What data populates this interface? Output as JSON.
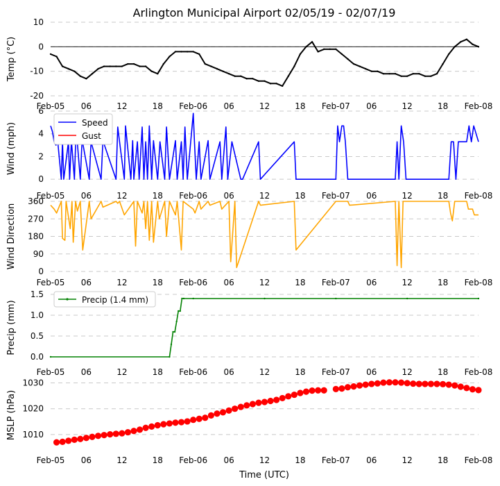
{
  "title": "Arlington Municipal Airport 02/05/19 - 02/07/19",
  "xlabel": "Time (UTC)",
  "x_range_hours": [
    0,
    72
  ],
  "x_ticks": [
    {
      "h": 0,
      "label": "Feb-05",
      "major": true
    },
    {
      "h": 6,
      "label": "06",
      "major": false
    },
    {
      "h": 12,
      "label": "12",
      "major": false
    },
    {
      "h": 18,
      "label": "18",
      "major": false
    },
    {
      "h": 24,
      "label": "Feb-06",
      "major": true
    },
    {
      "h": 30,
      "label": "06",
      "major": false
    },
    {
      "h": 36,
      "label": "12",
      "major": false
    },
    {
      "h": 42,
      "label": "18",
      "major": false
    },
    {
      "h": 48,
      "label": "Feb-07",
      "major": true
    },
    {
      "h": 54,
      "label": "06",
      "major": false
    },
    {
      "h": 60,
      "label": "12",
      "major": false
    },
    {
      "h": 66,
      "label": "18",
      "major": false
    },
    {
      "h": 72,
      "label": "Feb-08",
      "major": true
    }
  ],
  "colors": {
    "temp": "#000000",
    "speed": "#0000ff",
    "gust": "#ff0000",
    "dir": "#ffa500",
    "precip": "#008000",
    "mslp": "#ff0000",
    "grid": "#c8c8c8"
  },
  "chart_data": [
    {
      "id": "temp",
      "type": "line",
      "ylabel": "Temp ($^\\circ$C)",
      "ylabel_display": "Temp (°C)",
      "ylim": [
        -20,
        10
      ],
      "yticks": [
        -20,
        -10,
        0,
        10
      ],
      "zero_line": true,
      "series": [
        {
          "name": "Temp",
          "x_hours": [
            0,
            1,
            2,
            3,
            4,
            5,
            6,
            7,
            8,
            9,
            10,
            11,
            12,
            13,
            14,
            15,
            16,
            17,
            18,
            19,
            20,
            21,
            22,
            23,
            24,
            25,
            26,
            27,
            28,
            29,
            30,
            31,
            32,
            33,
            34,
            35,
            36,
            37,
            38,
            39,
            40,
            41,
            42,
            43,
            44,
            45,
            46,
            47,
            48,
            49,
            50,
            51,
            52,
            53,
            54,
            55,
            56,
            57,
            58,
            59,
            60,
            61,
            62,
            63,
            64,
            65,
            66,
            67,
            68,
            69,
            70,
            71,
            72
          ],
          "values": [
            -3,
            -4,
            -8,
            -9,
            -10,
            -12,
            -13,
            -11,
            -9,
            -8,
            -8,
            -8,
            -8,
            -7,
            -7,
            -8,
            -8,
            -10,
            -11,
            -7,
            -4,
            -2,
            -2,
            -2,
            -2,
            -3,
            -7,
            -8,
            -9,
            -10,
            -11,
            -12,
            -12,
            -13,
            -13,
            -14,
            -14,
            -15,
            -15,
            -16,
            -12,
            -8,
            -3,
            0,
            2,
            -2,
            -1,
            -1,
            -1,
            -3,
            -5,
            -7,
            -8,
            -9,
            -10,
            -10,
            -11,
            -11,
            -11,
            -12,
            -12,
            -11,
            -11,
            -12,
            -12,
            -11,
            -7,
            -3,
            0,
            2,
            3,
            1,
            0
          ]
        }
      ]
    },
    {
      "id": "wind",
      "type": "line",
      "ylabel": "Wind (mph)",
      "ylim": [
        -0.6,
        6
      ],
      "yticks": [
        0,
        2,
        4,
        6
      ],
      "legend": [
        "Speed",
        "Gust"
      ],
      "series": [
        {
          "name": "Speed",
          "x_hours": [
            0,
            0.3,
            0.6,
            0.9,
            1.2,
            1.8,
            2.0,
            2.2,
            3.0,
            3.2,
            3.5,
            4.0,
            4.3,
            5.0,
            5.3,
            6.5,
            6.8,
            8.5,
            8.8,
            11.0,
            11.3,
            11.6,
            12.4,
            12.6,
            13.5,
            13.8,
            14.0,
            14.6,
            14.9,
            15.4,
            15.7,
            16.0,
            16.3,
            16.6,
            17.0,
            17.3,
            18.0,
            18.4,
            19.2,
            19.5,
            20.0,
            21.0,
            21.3,
            22.0,
            22.3,
            22.6,
            23.0,
            24.0,
            24.2,
            24.5,
            25.0,
            25.3,
            26.5,
            26.8,
            28.5,
            28.8,
            29.5,
            29.8,
            30.5,
            32.0,
            32.3,
            35.0,
            35.3,
            41.0,
            41.3,
            48.0,
            48.3,
            48.6,
            49.0,
            49.3,
            49.6,
            50.0,
            58.0,
            58.3,
            58.6,
            59.0,
            59.4,
            59.8,
            67.0,
            67.4,
            67.8,
            68.2,
            68.6,
            70.0,
            70.4,
            70.8,
            71.2,
            72.0
          ],
          "values": [
            4.7,
            4.2,
            3.3,
            3.0,
            3.3,
            0.0,
            3.3,
            0.0,
            3.3,
            0.0,
            3.4,
            0.0,
            4.5,
            0.0,
            3.5,
            0.0,
            3.3,
            0.0,
            3.4,
            0.0,
            4.6,
            3.3,
            0.0,
            4.7,
            0.0,
            3.4,
            0.0,
            3.3,
            0.0,
            4.6,
            0.0,
            3.3,
            0.0,
            4.7,
            0.0,
            3.4,
            0.0,
            3.3,
            0.0,
            4.6,
            0.0,
            3.4,
            0.0,
            3.3,
            0.0,
            4.6,
            0.0,
            5.8,
            3.3,
            0.0,
            3.3,
            0.0,
            3.4,
            0.0,
            3.3,
            0.0,
            4.6,
            0.0,
            3.3,
            0.0,
            0.0,
            3.3,
            0.0,
            3.3,
            0.0,
            0.0,
            4.7,
            3.3,
            4.7,
            4.7,
            3.3,
            0.0,
            0.0,
            3.3,
            0.0,
            4.7,
            3.3,
            0.0,
            0.0,
            3.3,
            3.3,
            0.0,
            3.3,
            3.3,
            4.7,
            3.3,
            4.7,
            3.3
          ]
        },
        {
          "name": "Gust",
          "x_hours": [],
          "values": []
        }
      ]
    },
    {
      "id": "dir",
      "type": "line",
      "ylabel": "Wind Direction",
      "ylim": [
        0,
        360
      ],
      "yticks": [
        0,
        90,
        180,
        270,
        360
      ],
      "series": [
        {
          "name": "Direction",
          "x_hours": [
            0,
            0.3,
            0.6,
            1.0,
            1.4,
            1.8,
            2.0,
            2.4,
            2.6,
            3.0,
            3.3,
            3.6,
            3.8,
            4.2,
            4.5,
            5.0,
            5.4,
            6.5,
            6.8,
            8.5,
            8.8,
            11.0,
            11.3,
            11.6,
            12.4,
            14.0,
            14.3,
            14.6,
            15.4,
            15.7,
            16.0,
            16.3,
            16.6,
            17.0,
            17.3,
            18.0,
            18.3,
            19.2,
            19.5,
            20.0,
            21.0,
            21.3,
            22.0,
            22.3,
            24.0,
            24.3,
            25.0,
            25.3,
            26.5,
            26.8,
            28.5,
            28.8,
            30.0,
            30.3,
            31.0,
            31.3,
            35.0,
            35.3,
            41.0,
            41.3,
            48.0,
            50.0,
            50.3,
            58.0,
            58.3,
            58.6,
            59.0,
            59.3,
            67.0,
            67.3,
            67.6,
            68.0,
            70.0,
            70.3,
            71.0,
            71.3,
            72.0
          ],
          "values": [
            340,
            330,
            320,
            300,
            330,
            360,
            170,
            160,
            360,
            280,
            220,
            360,
            150,
            360,
            310,
            360,
            110,
            360,
            270,
            360,
            330,
            360,
            350,
            360,
            290,
            360,
            130,
            360,
            300,
            360,
            220,
            360,
            160,
            360,
            150,
            360,
            270,
            360,
            180,
            360,
            290,
            360,
            110,
            360,
            320,
            300,
            360,
            320,
            360,
            340,
            360,
            320,
            360,
            50,
            360,
            20,
            360,
            340,
            360,
            110,
            360,
            360,
            340,
            360,
            30,
            360,
            20,
            360,
            360,
            300,
            260,
            360,
            360,
            320,
            320,
            290,
            290
          ]
        }
      ]
    },
    {
      "id": "precip",
      "type": "line",
      "ylabel": "Precip (mm)",
      "ylim": [
        -0.1,
        1.5
      ],
      "yticks": [
        0.0,
        0.5,
        1.0,
        1.5
      ],
      "ytick_labels": [
        "0.0",
        "0.5",
        "1.0",
        "1.5"
      ],
      "legend": [
        "Precip (1.4 mm)"
      ],
      "series": [
        {
          "name": "Precip (1.4 mm)",
          "x_hours": [
            0,
            20.0,
            20.3,
            20.6,
            20.9,
            21.2,
            21.5,
            21.8,
            22.1,
            22.4,
            24,
            36,
            48,
            60,
            72
          ],
          "values": [
            0.0,
            0.0,
            0.3,
            0.6,
            0.6,
            0.85,
            1.1,
            1.1,
            1.4,
            1.4,
            1.4,
            1.4,
            1.4,
            1.4,
            1.4
          ]
        }
      ]
    },
    {
      "id": "mslp",
      "type": "scatter",
      "ylabel": "MSLP (hPa)",
      "ylim": [
        1003,
        1032
      ],
      "yticks": [
        1010,
        1020,
        1030
      ],
      "series": [
        {
          "name": "MSLP",
          "x_hours": [
            1,
            2,
            3,
            4,
            5,
            6,
            7,
            8,
            9,
            10,
            11,
            12,
            13,
            14,
            15,
            16,
            17,
            18,
            19,
            20,
            21,
            22,
            23,
            24,
            25,
            26,
            27,
            28,
            29,
            30,
            31,
            32,
            33,
            34,
            35,
            36,
            37,
            38,
            39,
            40,
            41,
            42,
            43,
            44,
            45,
            46,
            48,
            49,
            50,
            51,
            52,
            53,
            54,
            55,
            56,
            57,
            58,
            59,
            60,
            61,
            62,
            63,
            64,
            65,
            66,
            67,
            68,
            69,
            70,
            71,
            72
          ],
          "values": [
            1007.0,
            1007.2,
            1007.6,
            1008.0,
            1008.3,
            1008.7,
            1009.1,
            1009.5,
            1009.8,
            1010.1,
            1010.3,
            1010.5,
            1010.9,
            1011.4,
            1011.9,
            1012.6,
            1013.1,
            1013.6,
            1014.0,
            1014.3,
            1014.6,
            1014.8,
            1015.1,
            1015.7,
            1016.1,
            1016.5,
            1017.4,
            1018.1,
            1018.6,
            1019.3,
            1020.0,
            1020.7,
            1021.3,
            1021.8,
            1022.3,
            1022.6,
            1023.0,
            1023.4,
            1024.1,
            1024.8,
            1025.4,
            1026.1,
            1026.6,
            1027.0,
            1027.1,
            1027.1,
            1027.6,
            1027.8,
            1028.3,
            1028.6,
            1029.0,
            1029.3,
            1029.6,
            1029.8,
            1030.1,
            1030.2,
            1030.2,
            1030.1,
            1029.9,
            1029.7,
            1029.6,
            1029.6,
            1029.6,
            1029.6,
            1029.5,
            1029.3,
            1029.0,
            1028.5,
            1028.0,
            1027.5,
            1027.2
          ]
        }
      ]
    }
  ]
}
